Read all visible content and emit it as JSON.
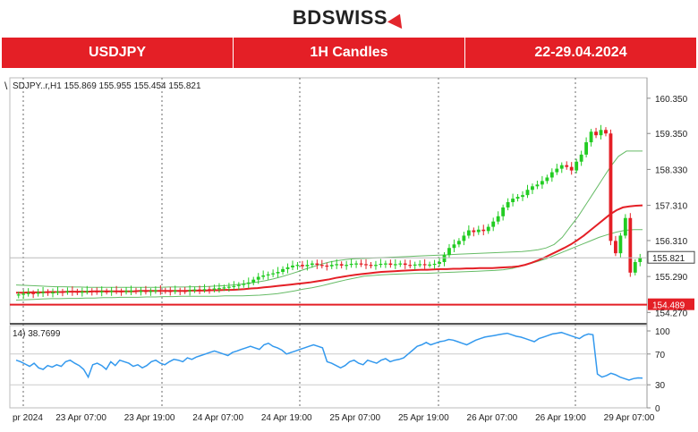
{
  "brand": {
    "name_part1": "BD",
    "name_part2": "SWISS"
  },
  "banner": {
    "symbol": "USDJPY",
    "timeframe": "1H Candles",
    "period": "22-29.04.2024"
  },
  "colors": {
    "brand_red": "#e41f26",
    "bull": "#22cc22",
    "bear": "#e41f26",
    "ma_fast": "#e41f26",
    "bollinger": "#66bb66",
    "rsi": "#3399ee",
    "support": "#e41f26"
  },
  "chart_data": [
    {
      "type": "candlestick",
      "info_line": "SDJPY..r,H1  155.869 155.955 155.454 155.821",
      "ylim": [
        154.1,
        160.6
      ],
      "y_ticks": [
        "160.350",
        "159.350",
        "158.330",
        "157.310",
        "156.310",
        "155.290",
        "154.270"
      ],
      "x_ticks": [
        "pr 2024",
        "23 Apr 07:00",
        "23 Apr 19:00",
        "24 Apr 07:00",
        "24 Apr 19:00",
        "25 Apr 07:00",
        "25 Apr 19:00",
        "26 Apr 07:00",
        "26 Apr 19:00",
        "29 Apr 07:00"
      ],
      "current_price_label": "155.821",
      "support_label": "154.489",
      "support_level": 154.489,
      "current_price": 155.821,
      "candles_close": [
        154.78,
        154.8,
        154.82,
        154.8,
        154.83,
        154.85,
        154.82,
        154.84,
        154.86,
        154.85,
        154.87,
        154.86,
        154.84,
        154.86,
        154.88,
        154.87,
        154.85,
        154.87,
        154.86,
        154.88,
        154.87,
        154.86,
        154.88,
        154.89,
        154.87,
        154.88,
        154.86,
        154.88,
        154.9,
        154.89,
        154.88,
        154.87,
        154.89,
        154.88,
        154.87,
        154.9,
        154.92,
        154.91,
        154.93,
        154.92,
        154.95,
        154.96,
        154.98,
        155.0,
        155.02,
        155.05,
        155.08,
        155.12,
        155.2,
        155.28,
        155.32,
        155.35,
        155.38,
        155.42,
        155.5,
        155.55,
        155.6,
        155.62,
        155.58,
        155.62,
        155.66,
        155.62,
        155.6,
        155.58,
        155.62,
        155.64,
        155.6,
        155.62,
        155.65,
        155.66,
        155.64,
        155.62,
        155.6,
        155.62,
        155.65,
        155.66,
        155.62,
        155.64,
        155.66,
        155.62,
        155.6,
        155.63,
        155.64,
        155.62,
        155.63,
        155.65,
        155.7,
        155.9,
        156.1,
        156.2,
        156.3,
        156.45,
        156.6,
        156.55,
        156.62,
        156.58,
        156.7,
        156.85,
        157.0,
        157.25,
        157.4,
        157.5,
        157.55,
        157.6,
        157.75,
        157.85,
        157.9,
        158.0,
        158.1,
        158.25,
        158.35,
        158.45,
        158.4,
        158.3,
        158.55,
        158.75,
        159.1,
        159.4,
        159.3,
        159.45,
        159.35,
        156.3,
        155.95,
        156.45,
        156.95,
        155.4,
        155.7,
        155.821
      ],
      "ma_fast": [
        154.83,
        154.83,
        154.84,
        154.84,
        154.84,
        154.85,
        154.85,
        154.85,
        154.86,
        154.86,
        154.86,
        154.86,
        154.87,
        154.87,
        154.87,
        154.87,
        154.87,
        154.87,
        154.87,
        154.88,
        154.88,
        154.88,
        154.88,
        154.88,
        154.88,
        154.88,
        154.88,
        154.89,
        154.89,
        154.89,
        154.9,
        154.9,
        154.91,
        154.91,
        154.92,
        154.93,
        154.95,
        154.96,
        154.98,
        155.0,
        155.02,
        155.04,
        155.06,
        155.08,
        155.1,
        155.12,
        155.15,
        155.18,
        155.21,
        155.25,
        155.28,
        155.31,
        155.34,
        155.36,
        155.38,
        155.4,
        155.42,
        155.43,
        155.44,
        155.45,
        155.46,
        155.47,
        155.48,
        155.48,
        155.49,
        155.5,
        155.5,
        155.51,
        155.51,
        155.52,
        155.52,
        155.53,
        155.53,
        155.53,
        155.54,
        155.55,
        155.56,
        155.58,
        155.62,
        155.68,
        155.75,
        155.83,
        155.92,
        156.01,
        156.1,
        156.2,
        156.32,
        156.45,
        156.6,
        156.75,
        156.9,
        157.05,
        157.17,
        157.25,
        157.28,
        157.3,
        157.31
      ],
      "boll_upper": [
        155.05,
        155.04,
        155.03,
        155.02,
        155.01,
        155.0,
        155.0,
        154.99,
        154.99,
        154.98,
        154.98,
        154.98,
        154.98,
        154.98,
        154.98,
        154.98,
        154.98,
        154.98,
        154.98,
        154.99,
        154.99,
        154.99,
        155.0,
        155.0,
        155.01,
        155.02,
        155.03,
        155.05,
        155.07,
        155.1,
        155.13,
        155.17,
        155.22,
        155.28,
        155.35,
        155.42,
        155.5,
        155.57,
        155.64,
        155.7,
        155.74,
        155.77,
        155.79,
        155.8,
        155.81,
        155.82,
        155.83,
        155.84,
        155.85,
        155.86,
        155.87,
        155.88,
        155.89,
        155.9,
        155.91,
        155.92,
        155.93,
        155.94,
        155.95,
        155.96,
        155.97,
        155.98,
        155.99,
        156.0,
        156.02,
        156.05,
        156.1,
        156.2,
        156.4,
        156.7,
        157.0,
        157.35,
        157.7,
        158.05,
        158.4,
        158.7,
        158.85,
        158.85,
        158.85
      ],
      "boll_lower": [
        154.62,
        154.63,
        154.64,
        154.65,
        154.66,
        154.66,
        154.67,
        154.67,
        154.68,
        154.68,
        154.69,
        154.69,
        154.7,
        154.7,
        154.7,
        154.71,
        154.71,
        154.72,
        154.72,
        154.73,
        154.73,
        154.73,
        154.73,
        154.73,
        154.74,
        154.74,
        154.74,
        154.75,
        154.76,
        154.78,
        154.8,
        154.84,
        154.88,
        154.93,
        154.97,
        155.02,
        155.08,
        155.14,
        155.2,
        155.25,
        155.3,
        155.32,
        155.34,
        155.35,
        155.36,
        155.37,
        155.38,
        155.38,
        155.39,
        155.4,
        155.41,
        155.42,
        155.43,
        155.44,
        155.45,
        155.46,
        155.48,
        155.52,
        155.58,
        155.65,
        155.72,
        155.8,
        155.9,
        156.0,
        156.1,
        156.2,
        156.3,
        156.4,
        156.48,
        156.55,
        156.6,
        156.62,
        156.62
      ]
    },
    {
      "type": "line",
      "info_line": "14) 38.7699",
      "ylim": [
        0,
        100
      ],
      "y_ticks": [
        "100",
        "70",
        "30",
        "0"
      ],
      "values": [
        62,
        60,
        57,
        54,
        58,
        52,
        50,
        55,
        53,
        56,
        54,
        60,
        62,
        58,
        55,
        50,
        40,
        56,
        58,
        55,
        50,
        60,
        55,
        62,
        60,
        58,
        54,
        56,
        52,
        55,
        60,
        62,
        58,
        56,
        60,
        63,
        62,
        60,
        65,
        63,
        66,
        68,
        70,
        72,
        74,
        72,
        70,
        68,
        72,
        74,
        76,
        78,
        80,
        78,
        76,
        82,
        84,
        80,
        78,
        75,
        70,
        72,
        74,
        76,
        78,
        80,
        82,
        80,
        78,
        60,
        58,
        55,
        52,
        55,
        60,
        62,
        58,
        56,
        62,
        60,
        58,
        62,
        64,
        60,
        62,
        63,
        65,
        70,
        75,
        80,
        82,
        85,
        82,
        84,
        86,
        87,
        89,
        88,
        86,
        84,
        82,
        85,
        88,
        90,
        92,
        93,
        94,
        95,
        96,
        97,
        95,
        93,
        92,
        90,
        88,
        86,
        90,
        92,
        94,
        96,
        97,
        98,
        96,
        94,
        92,
        90,
        94,
        96,
        95,
        44,
        40,
        42,
        45,
        43,
        40,
        38,
        36,
        38,
        39,
        38.77
      ]
    }
  ]
}
